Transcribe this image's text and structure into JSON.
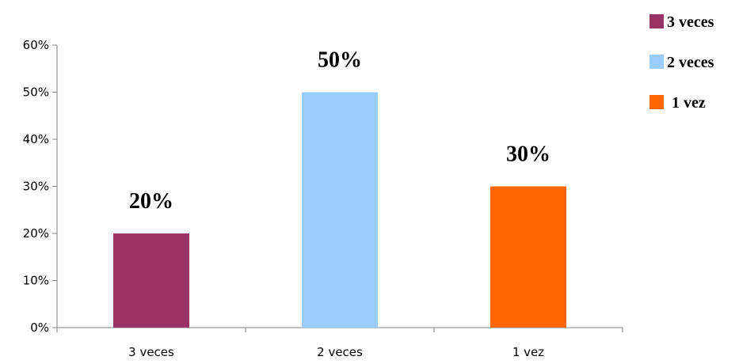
{
  "chart_data": {
    "type": "bar",
    "categories": [
      "3 veces",
      "2 veces",
      "1 vez"
    ],
    "values": [
      0.2,
      0.5,
      0.3
    ],
    "data_labels": [
      "20%",
      "50%",
      "30%"
    ],
    "colors": [
      "#993366",
      "#99CCFF",
      "#FF6600"
    ],
    "ylim": [
      0,
      0.6
    ],
    "yticks": [
      0,
      0.1,
      0.2,
      0.3,
      0.4,
      0.5,
      0.6
    ],
    "ytick_labels": [
      "0%",
      "10%",
      "20%",
      "30%",
      "40%",
      "50%",
      "60%"
    ],
    "title": "",
    "xlabel": "",
    "ylabel": "",
    "grid": false,
    "legend": {
      "position": "top-right",
      "entries": [
        {
          "label": "3 veces",
          "color": "#993366"
        },
        {
          "label": "2 veces",
          "color": "#99CCFF"
        },
        {
          "label": "1 vez",
          "color": "#FF6600"
        }
      ]
    }
  }
}
